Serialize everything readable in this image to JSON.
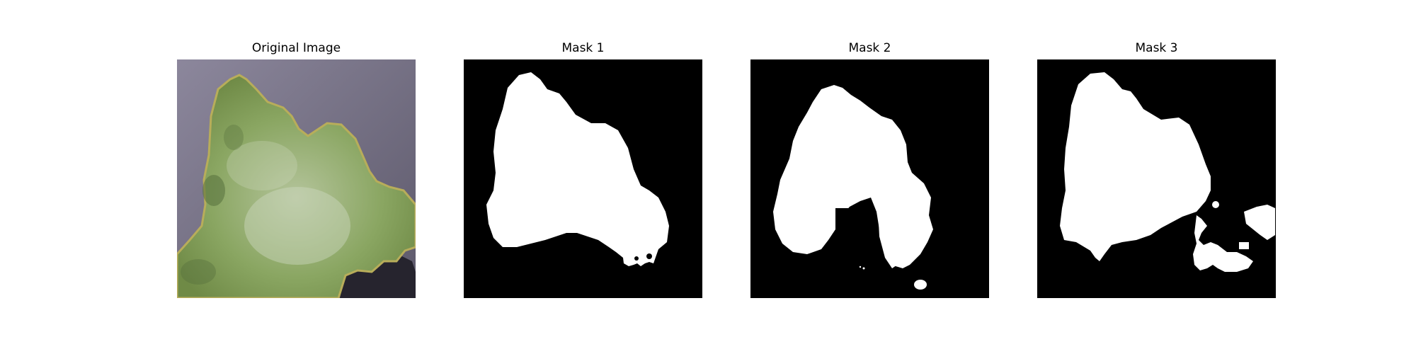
{
  "panels": [
    {
      "title": "Original Image"
    },
    {
      "title": "Mask 1"
    },
    {
      "title": "Mask 2"
    },
    {
      "title": "Mask 3"
    }
  ],
  "colors": {
    "background": "#ffffff",
    "mask_fg": "#ffffff",
    "mask_bg": "#000000",
    "backdrop": "#6e6a80",
    "leaf": "#8aa662",
    "leaf_edge": "#b8ad5a",
    "leaf_dark": "#566f3c",
    "leaf_light": "#cfd9c0",
    "shadow": "#26242e"
  }
}
